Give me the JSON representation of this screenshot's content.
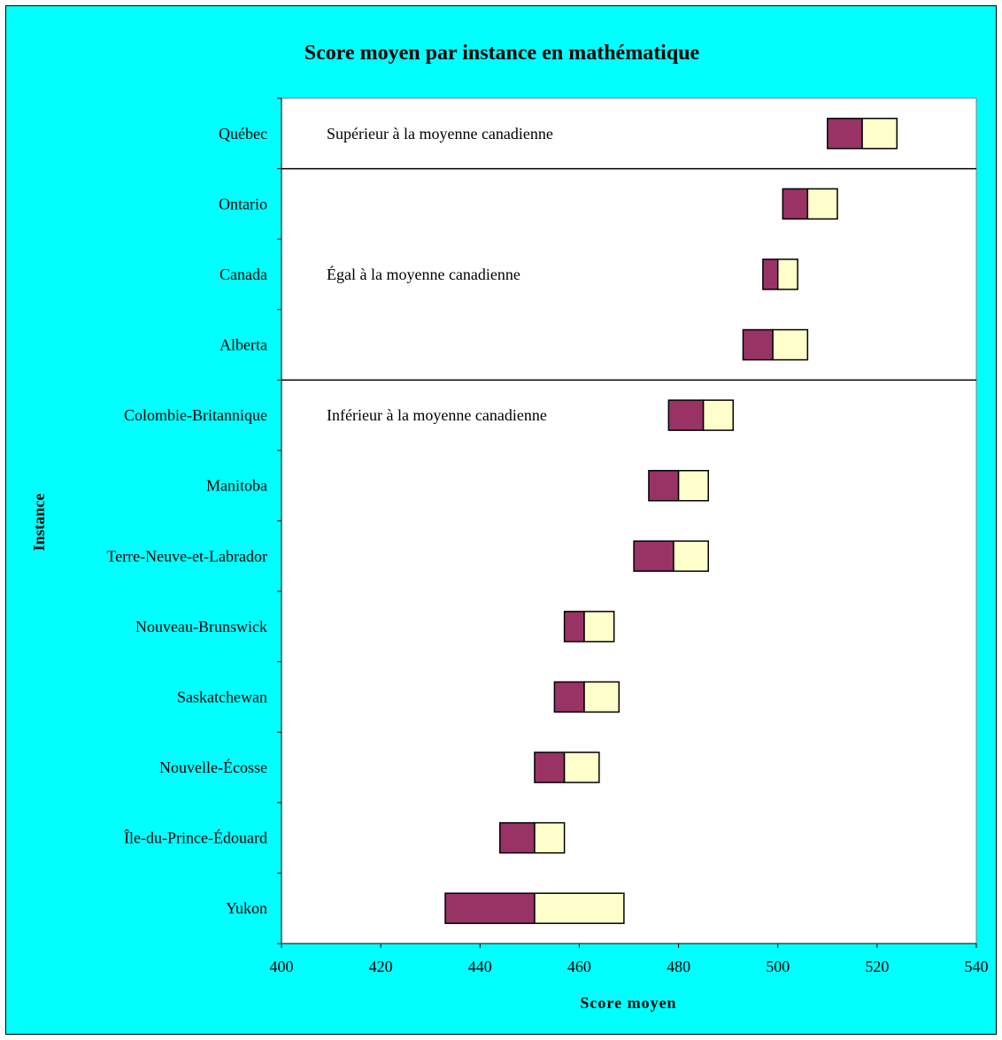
{
  "chart_data": {
    "type": "bar",
    "title": "Score moyen par instance en mathématique",
    "xlabel": "Score moyen",
    "ylabel": "Instance",
    "xlim": [
      400,
      540
    ],
    "xticks": [
      "400",
      "420",
      "440",
      "460",
      "480",
      "500",
      "520",
      "540"
    ],
    "grid": false,
    "categories": [
      "Québec",
      "Ontario",
      "Canada",
      "Alberta",
      "Colombie-Britannique",
      "Manitoba",
      "Terre-Neuve-et-Labrador",
      "Nouveau-Brunswick",
      "Saskatchewan",
      "Nouvelle-Écosse",
      "Île-du-Prince-Édouard",
      "Yukon"
    ],
    "series": [
      {
        "values": [
          510,
          501,
          497,
          493,
          478,
          474,
          471,
          457,
          455,
          451,
          444,
          433
        ]
      },
      {
        "values": [
          517,
          506,
          500,
          499,
          485,
          480,
          479,
          461,
          461,
          457,
          451,
          451
        ]
      },
      {
        "values": [
          524,
          512,
          504,
          506,
          491,
          486,
          486,
          467,
          468,
          464,
          457,
          469
        ]
      }
    ],
    "colors": {
      "lower_segment": "#993366",
      "upper_segment": "#ffffcc",
      "background": "#00ffff",
      "plot_area": "#ffffff"
    },
    "zones": [
      {
        "label": "Supérieur à la moyenne canadienne",
        "from": 0,
        "to": 0,
        "label_row": 0
      },
      {
        "label": "Égal à la moyenne canadienne",
        "from": 1,
        "to": 3,
        "label_row": 2
      },
      {
        "label": "Inférieur à la moyenne canadienne",
        "from": 4,
        "to": 11,
        "label_row": 4
      }
    ]
  }
}
